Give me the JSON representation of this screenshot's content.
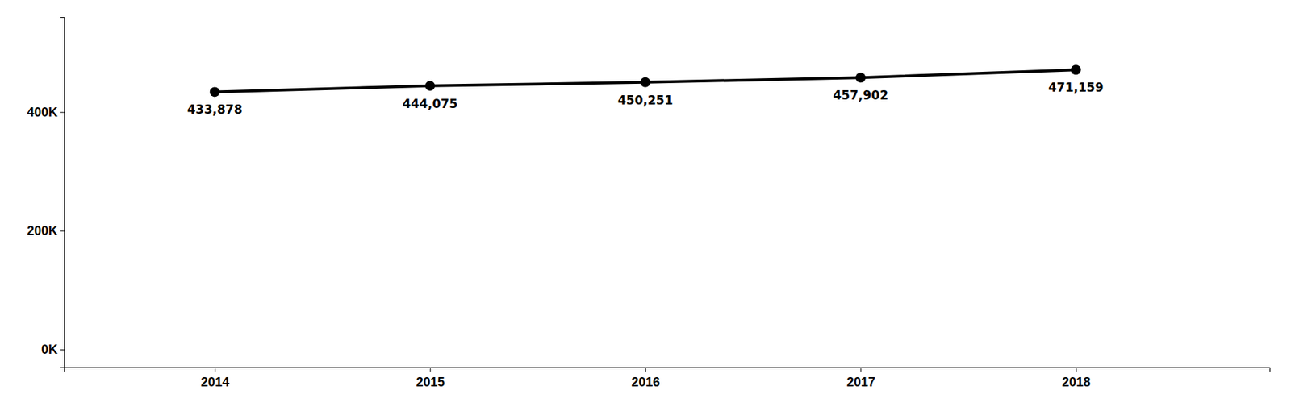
{
  "chart_data": {
    "type": "line",
    "x": [
      2014,
      2015,
      2016,
      2017,
      2018
    ],
    "values": [
      433878,
      444075,
      450251,
      457902,
      471159
    ],
    "value_labels": [
      "433,878",
      "444,075",
      "450,251",
      "457,902",
      "471,159"
    ],
    "data_labels": true,
    "color": "#000000",
    "marker": "circle",
    "xlim": [
      2013.3,
      2018.9
    ],
    "xticks": [
      2014,
      2015,
      2016,
      2017,
      2018
    ],
    "ylim": [
      -30000,
      560000
    ],
    "yticks": [
      {
        "value": 0,
        "label": "0K"
      },
      {
        "value": 200000,
        "label": "200K"
      },
      {
        "value": 400000,
        "label": "400K"
      }
    ],
    "grid": false
  }
}
